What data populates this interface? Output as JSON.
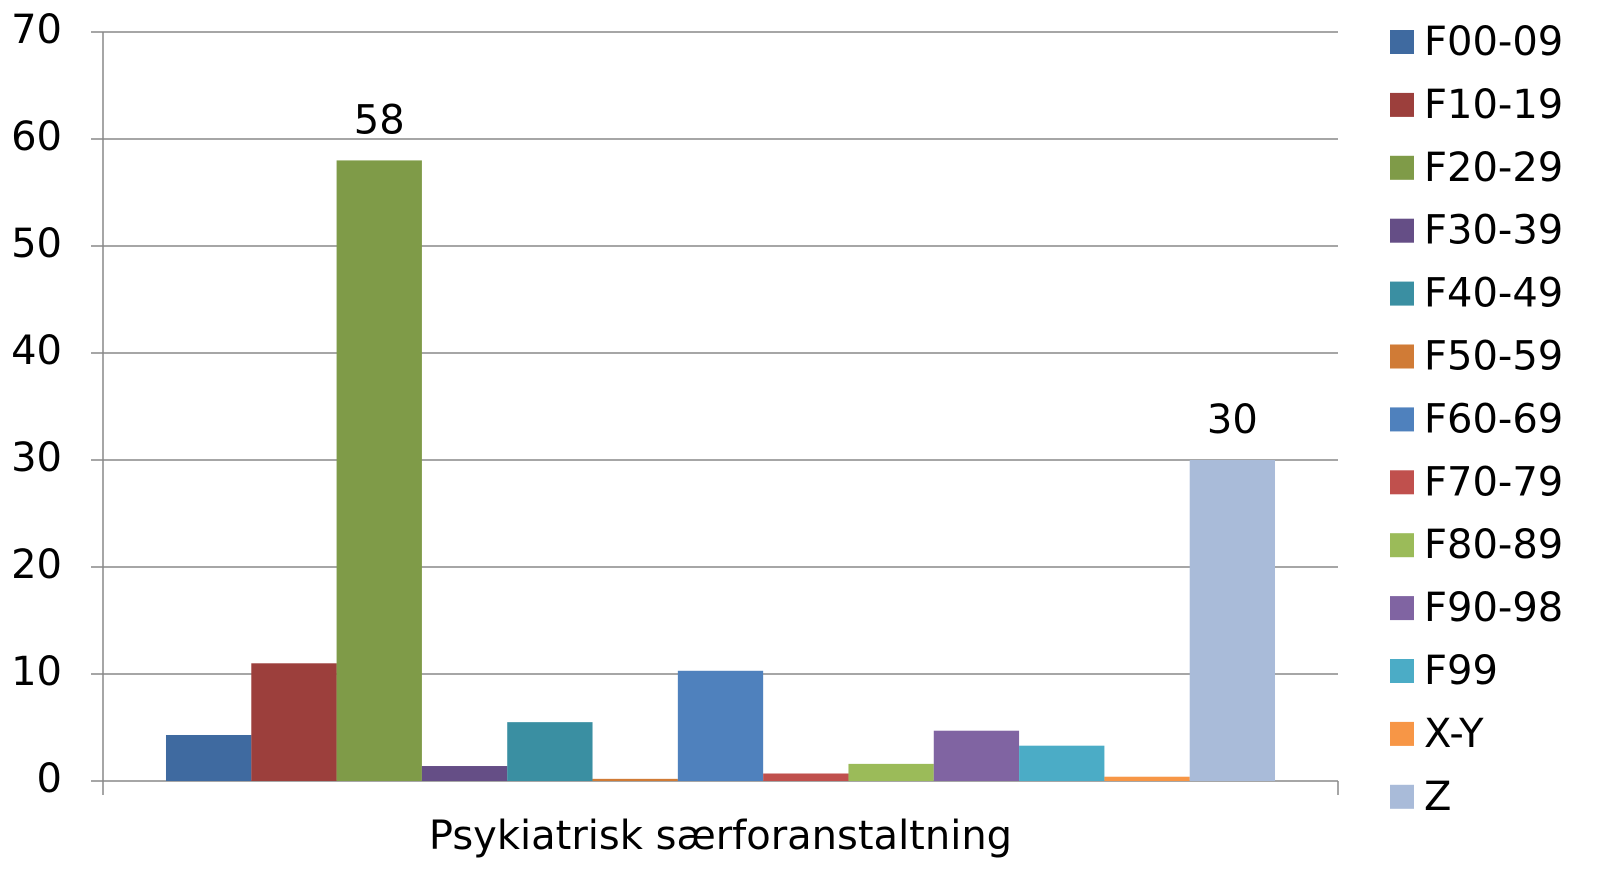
{
  "chart_data": {
    "type": "bar",
    "categories": [
      "Psykiatrisk særforanstaltning"
    ],
    "series": [
      {
        "name": "F00-09",
        "color": "#3f6aa0",
        "values": [
          4.3
        ]
      },
      {
        "name": "F10-19",
        "color": "#9c3f3c",
        "values": [
          11
        ]
      },
      {
        "name": "F20-29",
        "color": "#7f9b48",
        "values": [
          58
        ],
        "labels": true
      },
      {
        "name": "F30-39",
        "color": "#654e86",
        "values": [
          1.4
        ]
      },
      {
        "name": "F40-49",
        "color": "#3a8fa2",
        "values": [
          5.5
        ]
      },
      {
        "name": "F50-59",
        "color": "#d07b36",
        "values": [
          0.2
        ]
      },
      {
        "name": "F60-69",
        "color": "#4f81bd",
        "values": [
          10.3
        ]
      },
      {
        "name": "F70-79",
        "color": "#c0504d",
        "values": [
          0.7
        ]
      },
      {
        "name": "F80-89",
        "color": "#9bbb59",
        "values": [
          1.6
        ]
      },
      {
        "name": "F90-98",
        "color": "#8064a2",
        "values": [
          4.7
        ]
      },
      {
        "name": "F99",
        "color": "#4bacc6",
        "values": [
          3.3
        ]
      },
      {
        "name": "X-Y",
        "color": "#f79646",
        "values": [
          0.4
        ]
      },
      {
        "name": "Z",
        "color": "#a9bbd9",
        "values": [
          30
        ],
        "labels": true
      }
    ],
    "ylim": [
      0,
      70
    ],
    "yticks": [
      0,
      10,
      20,
      30,
      40,
      50,
      60,
      70
    ],
    "grid": true,
    "legend": "right"
  }
}
